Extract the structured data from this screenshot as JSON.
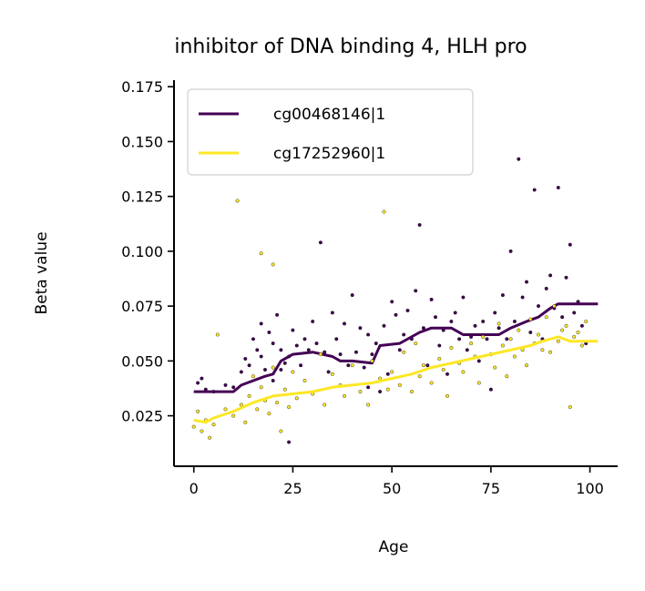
{
  "chart_data": {
    "type": "scatter",
    "title": "inhibitor of DNA binding 4, HLH pro",
    "xlabel": "Age",
    "ylabel": "Beta value",
    "xlim": [
      -5,
      107
    ],
    "ylim": [
      0.002,
      0.178
    ],
    "x_ticks": [
      0,
      25,
      50,
      75,
      100
    ],
    "y_ticks": [
      0.025,
      0.05,
      0.075,
      0.1,
      0.125,
      0.15,
      0.175
    ],
    "x_tick_labels": [
      "0",
      "25",
      "50",
      "75",
      "100"
    ],
    "y_tick_labels": [
      "0.025",
      "0.050",
      "0.075",
      "0.100",
      "0.125",
      "0.150",
      "0.175"
    ],
    "legend": {
      "position": "top-left"
    },
    "grid": false,
    "series": [
      {
        "name": "cg00468146|1",
        "color": "#440154",
        "trend": [
          [
            0,
            0.036
          ],
          [
            6,
            0.036
          ],
          [
            10,
            0.036
          ],
          [
            12,
            0.039
          ],
          [
            15,
            0.041
          ],
          [
            18,
            0.043
          ],
          [
            20,
            0.044
          ],
          [
            22,
            0.05
          ],
          [
            25,
            0.053
          ],
          [
            30,
            0.054
          ],
          [
            35,
            0.052
          ],
          [
            37,
            0.05
          ],
          [
            40,
            0.05
          ],
          [
            45,
            0.049
          ],
          [
            47,
            0.057
          ],
          [
            52,
            0.058
          ],
          [
            57,
            0.063
          ],
          [
            60,
            0.065
          ],
          [
            65,
            0.065
          ],
          [
            68,
            0.062
          ],
          [
            72,
            0.062
          ],
          [
            77,
            0.062
          ],
          [
            80,
            0.065
          ],
          [
            84,
            0.068
          ],
          [
            87,
            0.07
          ],
          [
            90,
            0.074
          ],
          [
            92,
            0.076
          ],
          [
            102,
            0.076
          ]
        ],
        "points": [
          [
            1,
            0.04
          ],
          [
            2,
            0.042
          ],
          [
            3,
            0.037
          ],
          [
            5,
            0.036
          ],
          [
            8,
            0.039
          ],
          [
            10,
            0.038
          ],
          [
            12,
            0.045
          ],
          [
            13,
            0.051
          ],
          [
            14,
            0.048
          ],
          [
            15,
            0.06
          ],
          [
            16,
            0.055
          ],
          [
            17,
            0.052
          ],
          [
            17,
            0.067
          ],
          [
            18,
            0.046
          ],
          [
            19,
            0.063
          ],
          [
            20,
            0.058
          ],
          [
            20,
            0.041
          ],
          [
            21,
            0.071
          ],
          [
            22,
            0.055
          ],
          [
            22,
            0.046
          ],
          [
            23,
            0.049
          ],
          [
            24,
            0.052
          ],
          [
            24,
            0.013
          ],
          [
            25,
            0.064
          ],
          [
            26,
            0.057
          ],
          [
            27,
            0.048
          ],
          [
            28,
            0.06
          ],
          [
            29,
            0.055
          ],
          [
            30,
            0.068
          ],
          [
            31,
            0.058
          ],
          [
            32,
            0.104
          ],
          [
            33,
            0.054
          ],
          [
            34,
            0.045
          ],
          [
            35,
            0.072
          ],
          [
            36,
            0.06
          ],
          [
            37,
            0.053
          ],
          [
            38,
            0.067
          ],
          [
            39,
            0.048
          ],
          [
            40,
            0.08
          ],
          [
            41,
            0.054
          ],
          [
            42,
            0.065
          ],
          [
            43,
            0.047
          ],
          [
            44,
            0.038
          ],
          [
            44,
            0.062
          ],
          [
            45,
            0.053
          ],
          [
            46,
            0.058
          ],
          [
            47,
            0.036
          ],
          [
            48,
            0.066
          ],
          [
            49,
            0.044
          ],
          [
            50,
            0.077
          ],
          [
            51,
            0.071
          ],
          [
            52,
            0.055
          ],
          [
            53,
            0.062
          ],
          [
            54,
            0.073
          ],
          [
            55,
            0.06
          ],
          [
            56,
            0.082
          ],
          [
            57,
            0.112
          ],
          [
            58,
            0.065
          ],
          [
            59,
            0.048
          ],
          [
            60,
            0.078
          ],
          [
            61,
            0.07
          ],
          [
            62,
            0.057
          ],
          [
            63,
            0.064
          ],
          [
            64,
            0.044
          ],
          [
            65,
            0.068
          ],
          [
            66,
            0.072
          ],
          [
            67,
            0.06
          ],
          [
            68,
            0.079
          ],
          [
            69,
            0.055
          ],
          [
            70,
            0.061
          ],
          [
            71,
            0.066
          ],
          [
            72,
            0.05
          ],
          [
            73,
            0.068
          ],
          [
            74,
            0.06
          ],
          [
            75,
            0.037
          ],
          [
            76,
            0.072
          ],
          [
            77,
            0.065
          ],
          [
            78,
            0.08
          ],
          [
            79,
            0.06
          ],
          [
            80,
            0.1
          ],
          [
            81,
            0.068
          ],
          [
            82,
            0.142
          ],
          [
            83,
            0.079
          ],
          [
            84,
            0.086
          ],
          [
            85,
            0.063
          ],
          [
            86,
            0.128
          ],
          [
            87,
            0.075
          ],
          [
            88,
            0.06
          ],
          [
            89,
            0.083
          ],
          [
            90,
            0.089
          ],
          [
            91,
            0.074
          ],
          [
            92,
            0.129
          ],
          [
            93,
            0.07
          ],
          [
            94,
            0.088
          ],
          [
            95,
            0.103
          ],
          [
            96,
            0.072
          ],
          [
            97,
            0.077
          ],
          [
            98,
            0.066
          ],
          [
            99,
            0.058
          ]
        ]
      },
      {
        "name": "cg17252960|1",
        "color": "#fde725",
        "trend": [
          [
            0,
            0.023
          ],
          [
            3,
            0.022
          ],
          [
            5,
            0.024
          ],
          [
            10,
            0.027
          ],
          [
            15,
            0.031
          ],
          [
            20,
            0.034
          ],
          [
            25,
            0.035
          ],
          [
            30,
            0.036
          ],
          [
            35,
            0.038
          ],
          [
            40,
            0.039
          ],
          [
            45,
            0.04
          ],
          [
            50,
            0.042
          ],
          [
            55,
            0.044
          ],
          [
            60,
            0.047
          ],
          [
            65,
            0.049
          ],
          [
            70,
            0.051
          ],
          [
            75,
            0.053
          ],
          [
            80,
            0.055
          ],
          [
            85,
            0.057
          ],
          [
            88,
            0.059
          ],
          [
            92,
            0.061
          ],
          [
            95,
            0.059
          ],
          [
            102,
            0.059
          ]
        ],
        "points": [
          [
            0,
            0.02
          ],
          [
            1,
            0.027
          ],
          [
            2,
            0.018
          ],
          [
            3,
            0.023
          ],
          [
            4,
            0.015
          ],
          [
            5,
            0.021
          ],
          [
            6,
            0.062
          ],
          [
            8,
            0.028
          ],
          [
            10,
            0.025
          ],
          [
            11,
            0.123
          ],
          [
            12,
            0.03
          ],
          [
            13,
            0.022
          ],
          [
            14,
            0.034
          ],
          [
            15,
            0.043
          ],
          [
            16,
            0.028
          ],
          [
            17,
            0.099
          ],
          [
            17,
            0.038
          ],
          [
            18,
            0.032
          ],
          [
            19,
            0.026
          ],
          [
            20,
            0.047
          ],
          [
            20,
            0.094
          ],
          [
            21,
            0.031
          ],
          [
            22,
            0.018
          ],
          [
            23,
            0.037
          ],
          [
            24,
            0.029
          ],
          [
            25,
            0.045
          ],
          [
            26,
            0.033
          ],
          [
            28,
            0.041
          ],
          [
            30,
            0.035
          ],
          [
            32,
            0.053
          ],
          [
            33,
            0.03
          ],
          [
            35,
            0.044
          ],
          [
            37,
            0.039
          ],
          [
            38,
            0.034
          ],
          [
            40,
            0.048
          ],
          [
            42,
            0.036
          ],
          [
            44,
            0.03
          ],
          [
            45,
            0.05
          ],
          [
            47,
            0.042
          ],
          [
            48,
            0.118
          ],
          [
            49,
            0.037
          ],
          [
            50,
            0.045
          ],
          [
            52,
            0.039
          ],
          [
            53,
            0.054
          ],
          [
            55,
            0.036
          ],
          [
            56,
            0.058
          ],
          [
            57,
            0.043
          ],
          [
            58,
            0.048
          ],
          [
            60,
            0.04
          ],
          [
            62,
            0.051
          ],
          [
            63,
            0.046
          ],
          [
            64,
            0.034
          ],
          [
            65,
            0.056
          ],
          [
            67,
            0.049
          ],
          [
            68,
            0.045
          ],
          [
            70,
            0.058
          ],
          [
            71,
            0.052
          ],
          [
            72,
            0.04
          ],
          [
            73,
            0.061
          ],
          [
            75,
            0.053
          ],
          [
            76,
            0.047
          ],
          [
            77,
            0.067
          ],
          [
            78,
            0.057
          ],
          [
            79,
            0.043
          ],
          [
            80,
            0.06
          ],
          [
            81,
            0.052
          ],
          [
            82,
            0.064
          ],
          [
            83,
            0.055
          ],
          [
            84,
            0.048
          ],
          [
            85,
            0.069
          ],
          [
            86,
            0.058
          ],
          [
            87,
            0.062
          ],
          [
            88,
            0.055
          ],
          [
            89,
            0.07
          ],
          [
            90,
            0.054
          ],
          [
            91,
            0.075
          ],
          [
            92,
            0.059
          ],
          [
            93,
            0.064
          ],
          [
            94,
            0.066
          ],
          [
            95,
            0.029
          ],
          [
            96,
            0.061
          ],
          [
            97,
            0.063
          ],
          [
            98,
            0.057
          ],
          [
            99,
            0.068
          ]
        ]
      }
    ]
  }
}
